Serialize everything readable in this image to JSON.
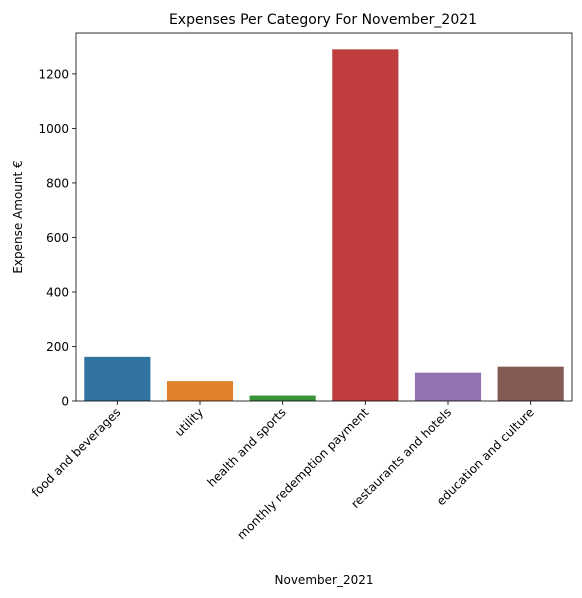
{
  "chart_data": {
    "type": "bar",
    "title": "Expenses Per Category For November_2021",
    "xlabel": "November_2021",
    "ylabel": "Expense Amount €",
    "categories": [
      "food and beverages",
      "utility",
      "health and sports",
      "monthly redemption payment",
      "restaurants and hotels",
      "education and culture"
    ],
    "values": [
      162,
      73,
      20,
      1290,
      104,
      126
    ],
    "colors": [
      "#3274a1",
      "#e1812c",
      "#3a923a",
      "#c03d3e",
      "#9372b2",
      "#845b53"
    ],
    "ylim": [
      0,
      1350
    ],
    "yticks": [
      0,
      200,
      400,
      600,
      800,
      1000,
      1200
    ],
    "grid": false,
    "legend": "none"
  }
}
